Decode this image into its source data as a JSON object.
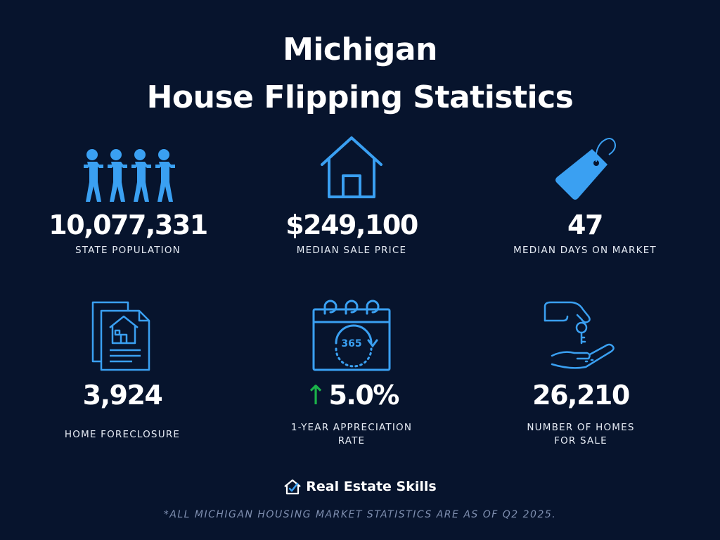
{
  "title": {
    "line1": "Michigan",
    "line2": "House Flipping Statistics"
  },
  "stats": [
    {
      "value": "10,077,331",
      "label": "STATE POPULATION",
      "icon": "people-icon"
    },
    {
      "value": "$249,100",
      "label": "MEDIAN SALE PRICE",
      "icon": "house-icon"
    },
    {
      "value": "47",
      "label": "MEDIAN DAYS ON MARKET",
      "icon": "price-tag-icon"
    },
    {
      "value": "3,924",
      "label": "HOME FORECLOSURE",
      "icon": "foreclosure-document-icon"
    },
    {
      "value": "5.0%",
      "trend_symbol": "↑",
      "label_line1": "1-YEAR APPRECIATION",
      "label_line2": "RATE",
      "icon": "calendar-365-icon"
    },
    {
      "value": "26,210",
      "label_line1": "NUMBER OF HOMES",
      "label_line2": "FOR SALE",
      "icon": "key-handover-icon"
    }
  ],
  "calendar_text": "365",
  "brand": {
    "name": "Real Estate Skills",
    "icon": "house-check-logo-icon"
  },
  "footnote": "*ALL MICHIGAN HOUSING MARKET STATISTICS ARE AS OF Q2 2025.",
  "colors": {
    "background": "#07142d",
    "icon_blue": "#3aa0f2",
    "trend_green": "#1bb34a",
    "footnote_gray": "#7f8fb0"
  }
}
